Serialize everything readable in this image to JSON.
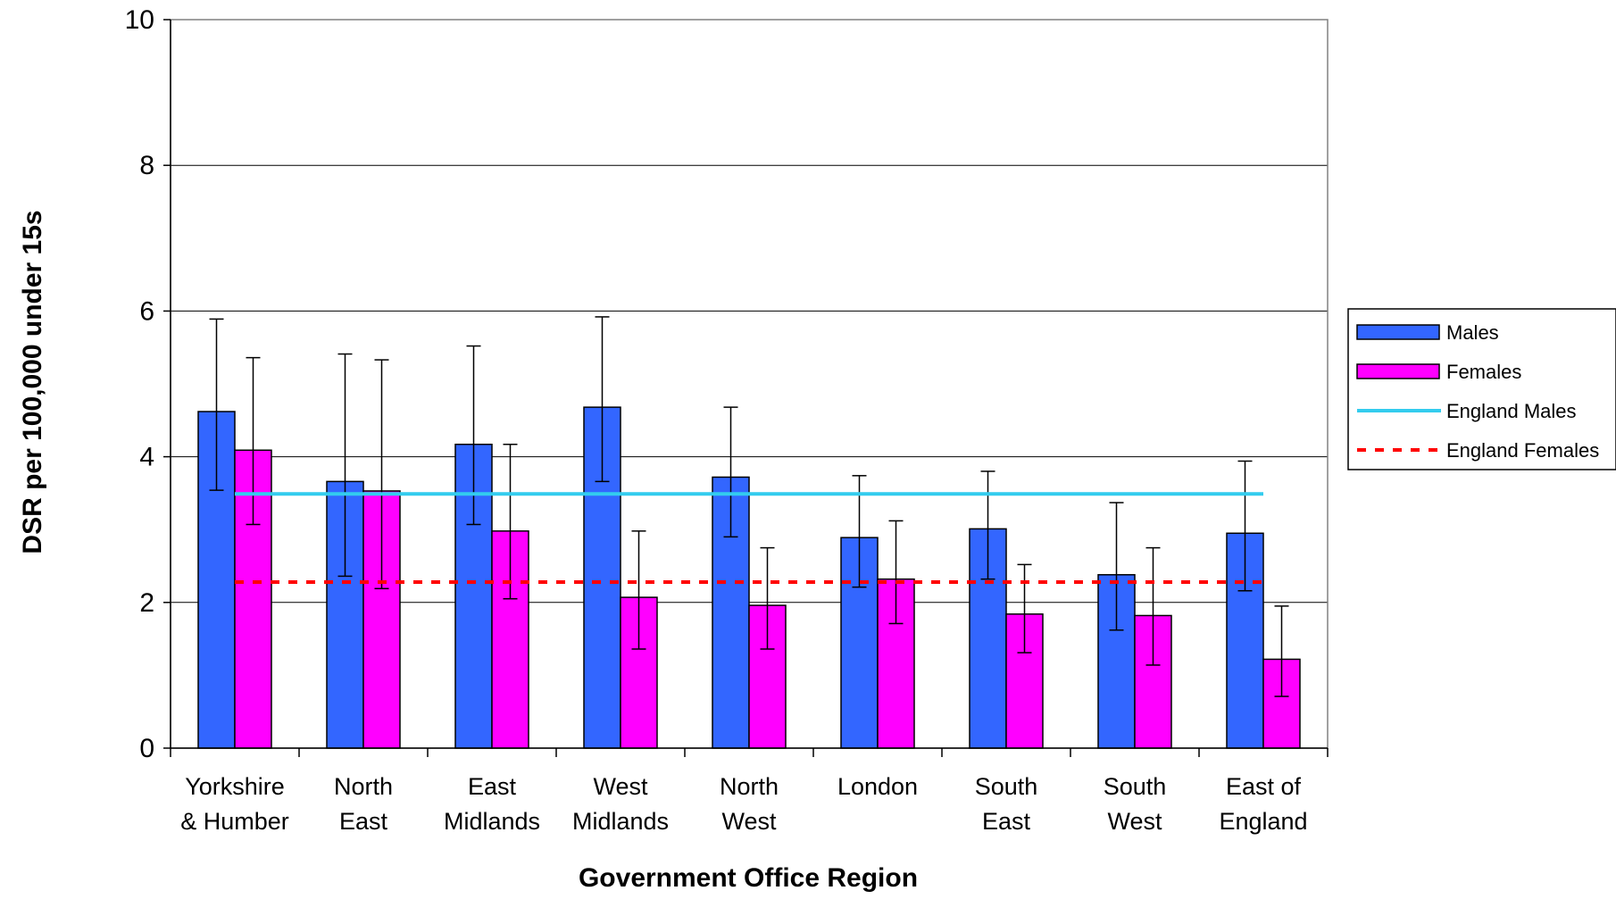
{
  "chart_data": {
    "type": "bar",
    "xlabel": "Government Office Region",
    "ylabel": "DSR per 100,000 under 15s",
    "ylim": [
      0,
      10
    ],
    "yticks": [
      0,
      2,
      4,
      6,
      8,
      10
    ],
    "grid": true,
    "legend_position": "right",
    "categories": [
      [
        "Yorkshire",
        "& Humber"
      ],
      [
        "North",
        "East"
      ],
      [
        "East",
        "Midlands"
      ],
      [
        "West",
        "Midlands"
      ],
      [
        "North",
        "West"
      ],
      [
        "London"
      ],
      [
        "South",
        "East"
      ],
      [
        "South",
        "West"
      ],
      [
        "East of",
        "England"
      ]
    ],
    "series": [
      {
        "name": "Males",
        "color": "#3366FF",
        "values": [
          4.62,
          3.66,
          4.17,
          4.68,
          3.72,
          2.89,
          3.01,
          2.38,
          2.95
        ],
        "error_low": [
          3.54,
          2.36,
          3.07,
          3.66,
          2.9,
          2.21,
          2.32,
          1.62,
          2.16
        ],
        "error_high": [
          5.89,
          5.41,
          5.52,
          5.92,
          4.68,
          3.74,
          3.8,
          3.37,
          3.94
        ]
      },
      {
        "name": "Females",
        "color": "#FF00FF",
        "values": [
          4.09,
          3.53,
          2.98,
          2.07,
          1.96,
          2.32,
          1.84,
          1.82,
          1.22
        ],
        "error_low": [
          3.07,
          2.19,
          2.05,
          1.36,
          1.36,
          1.71,
          1.31,
          1.14,
          0.71
        ],
        "error_high": [
          5.36,
          5.33,
          4.17,
          2.98,
          2.75,
          3.12,
          2.52,
          2.75,
          1.95
        ]
      }
    ],
    "reference_lines": [
      {
        "name": "England Males",
        "value": 3.49,
        "color": "#33CCEE",
        "style": "solid"
      },
      {
        "name": "England Females",
        "value": 2.28,
        "color": "#FF0000",
        "style": "dashed"
      }
    ],
    "legend": [
      {
        "label": "Males",
        "kind": "bar",
        "color": "#3366FF"
      },
      {
        "label": "Females",
        "kind": "bar",
        "color": "#FF00FF"
      },
      {
        "label": "England Males",
        "kind": "line-solid",
        "color": "#33CCEE"
      },
      {
        "label": "England Females",
        "kind": "line-dashed",
        "color": "#FF0000"
      }
    ]
  }
}
